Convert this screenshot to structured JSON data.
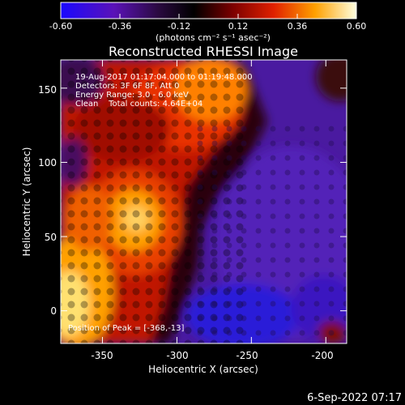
{
  "colorbar": {
    "tick_labels": [
      "-0.60",
      "-0.36",
      "-0.12",
      "0.12",
      "0.36",
      "0.60"
    ],
    "unit_label": "(photons cm⁻² s⁻¹ asec⁻²)",
    "range": [
      -0.6,
      0.6
    ]
  },
  "image": {
    "title": "Reconstructed RHESSI Image",
    "info_lines": [
      "19-Aug-2017 01:17:04.000 to 01:19:48.000",
      "Detectors: 3F 6F 8F, Att 0",
      "Energy Range: 3.0 - 6.0 keV",
      "Clean    Total counts: 4.64E+04"
    ],
    "peak_text": "Position of Peak = [-368,-13]",
    "xlabel": "Heliocentric X (arcsec)",
    "ylabel": "Heliocentric Y (arcsec)",
    "x_ticks": [
      "-350",
      "-300",
      "-250",
      "-200"
    ],
    "y_ticks": [
      "0",
      "50",
      "100",
      "150"
    ],
    "x_tick_values": [
      -350,
      -300,
      -250,
      -200
    ],
    "y_tick_values": [
      0,
      50,
      100,
      150
    ],
    "xlim": [
      -378,
      -186
    ],
    "ylim": [
      -22,
      169
    ]
  },
  "footer": {
    "timestamp": "6-Sep-2022 07:17"
  }
}
